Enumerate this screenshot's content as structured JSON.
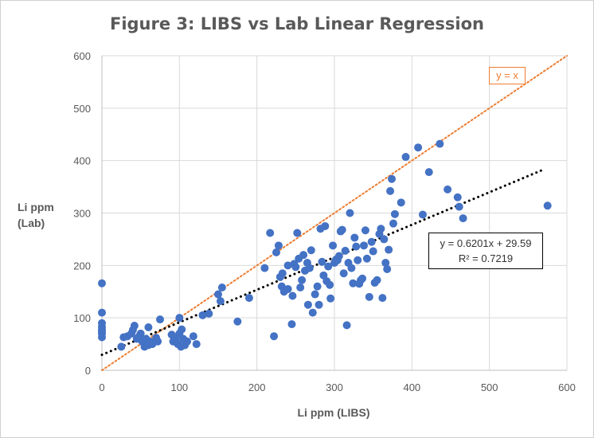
{
  "chart_data": {
    "type": "scatter",
    "title": "Figure 3: LIBS vs Lab Linear Regression",
    "xlabel": "Li ppm (LIBS)",
    "ylabel_lines": [
      "Li ppm",
      "(Lab)"
    ],
    "xlim": [
      0,
      600
    ],
    "ylim": [
      0,
      600
    ],
    "xticks": [
      0,
      100,
      200,
      300,
      400,
      500,
      600
    ],
    "yticks": [
      0,
      100,
      200,
      300,
      400,
      500,
      600
    ],
    "grid": true,
    "series": [
      {
        "color": "#4472c4",
        "points": [
          [
            0,
            166
          ],
          [
            0,
            110
          ],
          [
            0,
            90
          ],
          [
            0,
            83
          ],
          [
            0,
            78
          ],
          [
            0,
            74
          ],
          [
            0,
            70
          ],
          [
            0,
            63
          ],
          [
            25,
            45
          ],
          [
            28,
            63
          ],
          [
            33,
            65
          ],
          [
            38,
            70
          ],
          [
            40,
            77
          ],
          [
            42,
            85
          ],
          [
            45,
            60
          ],
          [
            48,
            65
          ],
          [
            50,
            70
          ],
          [
            52,
            55
          ],
          [
            55,
            45
          ],
          [
            57,
            60
          ],
          [
            60,
            82
          ],
          [
            60,
            48
          ],
          [
            62,
            55
          ],
          [
            65,
            50
          ],
          [
            70,
            62
          ],
          [
            72,
            55
          ],
          [
            75,
            97
          ],
          [
            90,
            68
          ],
          [
            92,
            55
          ],
          [
            95,
            60
          ],
          [
            98,
            50
          ],
          [
            100,
            70
          ],
          [
            100,
            100
          ],
          [
            102,
            45
          ],
          [
            103,
            78
          ],
          [
            105,
            60
          ],
          [
            107,
            48
          ],
          [
            110,
            55
          ],
          [
            118,
            65
          ],
          [
            122,
            50
          ],
          [
            130,
            105
          ],
          [
            138,
            108
          ],
          [
            150,
            145
          ],
          [
            153,
            132
          ],
          [
            155,
            158
          ],
          [
            175,
            93
          ],
          [
            190,
            138
          ],
          [
            210,
            195
          ],
          [
            217,
            262
          ],
          [
            222,
            65
          ],
          [
            225,
            225
          ],
          [
            228,
            238
          ],
          [
            230,
            178
          ],
          [
            232,
            160
          ],
          [
            233,
            185
          ],
          [
            235,
            150
          ],
          [
            240,
            155
          ],
          [
            240,
            200
          ],
          [
            245,
            88
          ],
          [
            246,
            142
          ],
          [
            248,
            203
          ],
          [
            250,
            197
          ],
          [
            252,
            262
          ],
          [
            254,
            213
          ],
          [
            256,
            158
          ],
          [
            258,
            172
          ],
          [
            260,
            220
          ],
          [
            262,
            190
          ],
          [
            265,
            205
          ],
          [
            266,
            125
          ],
          [
            268,
            195
          ],
          [
            270,
            229
          ],
          [
            272,
            110
          ],
          [
            275,
            145
          ],
          [
            278,
            160
          ],
          [
            280,
            125
          ],
          [
            282,
            270
          ],
          [
            284,
            207
          ],
          [
            286,
            181
          ],
          [
            288,
            275
          ],
          [
            290,
            170
          ],
          [
            292,
            198
          ],
          [
            294,
            163
          ],
          [
            295,
            137
          ],
          [
            298,
            238
          ],
          [
            300,
            205
          ],
          [
            302,
            211
          ],
          [
            304,
            210
          ],
          [
            306,
            218
          ],
          [
            308,
            265
          ],
          [
            310,
            268
          ],
          [
            312,
            185
          ],
          [
            314,
            228
          ],
          [
            316,
            86
          ],
          [
            318,
            205
          ],
          [
            320,
            300
          ],
          [
            322,
            195
          ],
          [
            324,
            166
          ],
          [
            326,
            253
          ],
          [
            328,
            236
          ],
          [
            330,
            210
          ],
          [
            332,
            165
          ],
          [
            334,
            172
          ],
          [
            336,
            175
          ],
          [
            338,
            238
          ],
          [
            340,
            267
          ],
          [
            342,
            213
          ],
          [
            345,
            140
          ],
          [
            348,
            245
          ],
          [
            350,
            227
          ],
          [
            352,
            167
          ],
          [
            355,
            172
          ],
          [
            358,
            260
          ],
          [
            360,
            270
          ],
          [
            362,
            138
          ],
          [
            364,
            250
          ],
          [
            366,
            205
          ],
          [
            368,
            193
          ],
          [
            370,
            230
          ],
          [
            372,
            342
          ],
          [
            374,
            365
          ],
          [
            376,
            280
          ],
          [
            378,
            298
          ],
          [
            386,
            320
          ],
          [
            392,
            407
          ],
          [
            408,
            425
          ],
          [
            414,
            297
          ],
          [
            422,
            378
          ],
          [
            436,
            432
          ],
          [
            446,
            345
          ],
          [
            459,
            330
          ],
          [
            461,
            312
          ],
          [
            466,
            290
          ],
          [
            575,
            314
          ]
        ]
      },
      {
        "type": "line",
        "style": "dotted",
        "color": "#ed7d31",
        "equation": "y = x",
        "x": [
          0,
          600
        ],
        "y": [
          0,
          600
        ]
      },
      {
        "type": "line",
        "style": "dotted",
        "color": "#000000",
        "equation": "y = 0.6201x + 29.59",
        "r_squared": "R² = 0.7219",
        "x": [
          0,
          570
        ],
        "y": [
          29.59,
          383.05
        ]
      }
    ],
    "annotations": {
      "identity_label": "y = x",
      "regression_equation": "y = 0.6201x + 29.59",
      "regression_r2": "R² = 0.7219"
    }
  }
}
